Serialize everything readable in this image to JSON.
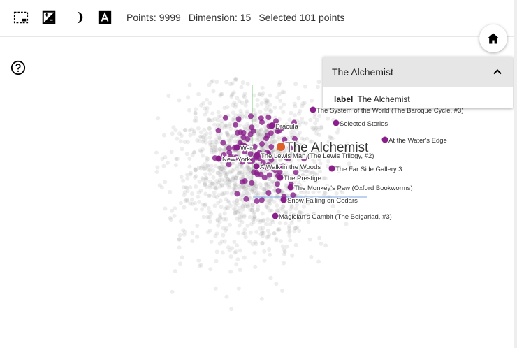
{
  "toolbar": {
    "tools": [
      {
        "name": "select-rectangle-icon"
      },
      {
        "name": "night-mode-icon"
      },
      {
        "name": "contrast-icon"
      },
      {
        "name": "label-toggle-icon"
      }
    ],
    "points_label": "Points: 9999",
    "dimension_label": "Dimension: 15",
    "selected_label": "Selected 101 points"
  },
  "panel": {
    "title": "The Alchemist",
    "field_key": "label",
    "field_value": "The Alchemist"
  },
  "plot": {
    "focus_label": "The Alchemist",
    "labels": [
      "The System of the World (The Baroque Cycle, #3)",
      "Selected Stories",
      "Dracula",
      "At the Water's Edge",
      "War",
      "The Lewis Man (The Lewis Trilogy, #2)",
      "New York",
      "A Walk in the Woods",
      "The Far Side Gallery 3",
      "The Prestige",
      "The Monkey's Paw (Oxford Bookworms)",
      "Snow Falling on Cedars",
      "Magician's Gambit (The Belgariad, #3)"
    ],
    "colors": {
      "background_points": "#9a9a9a",
      "selected": "#8a1f8c",
      "focus": "#e0602a"
    }
  }
}
